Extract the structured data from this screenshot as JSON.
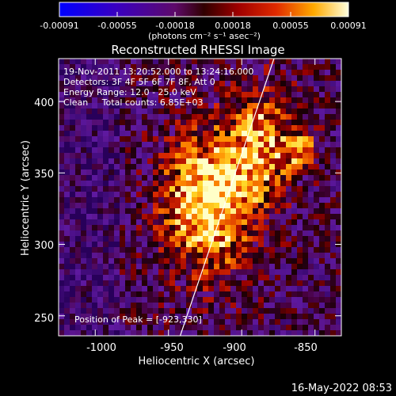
{
  "colorbar": {
    "ticks": [
      "-0.00091",
      "-0.00055",
      "-0.00018",
      "0.00018",
      "0.00055",
      "0.00091"
    ],
    "unit_label": "(photons cm⁻² s⁻¹ asec⁻²)",
    "min": -0.00091,
    "max": 0.00091
  },
  "info": {
    "time_range": "19-Nov-2011 13:20:52.000 to 13:24:16.000",
    "detectors": "Detectors: 3F 4F 5F 6F 7F 8F, Att 0",
    "energy_range": "Energy Range: 12.0 - 25.0 keV",
    "clean_counts": "Clean     Total counts: 6.85E+03",
    "peak_position": "Position of Peak = [-923,330]"
  },
  "footer": {
    "date": "16-May-2022 08:53"
  },
  "chart_data": {
    "type": "heatmap",
    "title": "Reconstructed RHESSI Image",
    "xlabel": "Heliocentric X (arcsec)",
    "ylabel": "Heliocentric Y (arcsec)",
    "xlim": [
      -1025,
      -832
    ],
    "ylim": [
      236,
      430
    ],
    "xticks": [
      -1000,
      -950,
      -900,
      -850
    ],
    "yticks": [
      250,
      300,
      350,
      400
    ],
    "xtick_labels": [
      "-1000",
      "-950",
      "-900",
      "-850"
    ],
    "ytick_labels": [
      "250",
      "300",
      "350",
      "400"
    ],
    "peak": [
      -923,
      330
    ],
    "limb_line": [
      [
        -942,
        236
      ],
      [
        -878,
        430
      ]
    ]
  },
  "colors": {
    "background": "#000000",
    "foreground": "#ffffff"
  }
}
